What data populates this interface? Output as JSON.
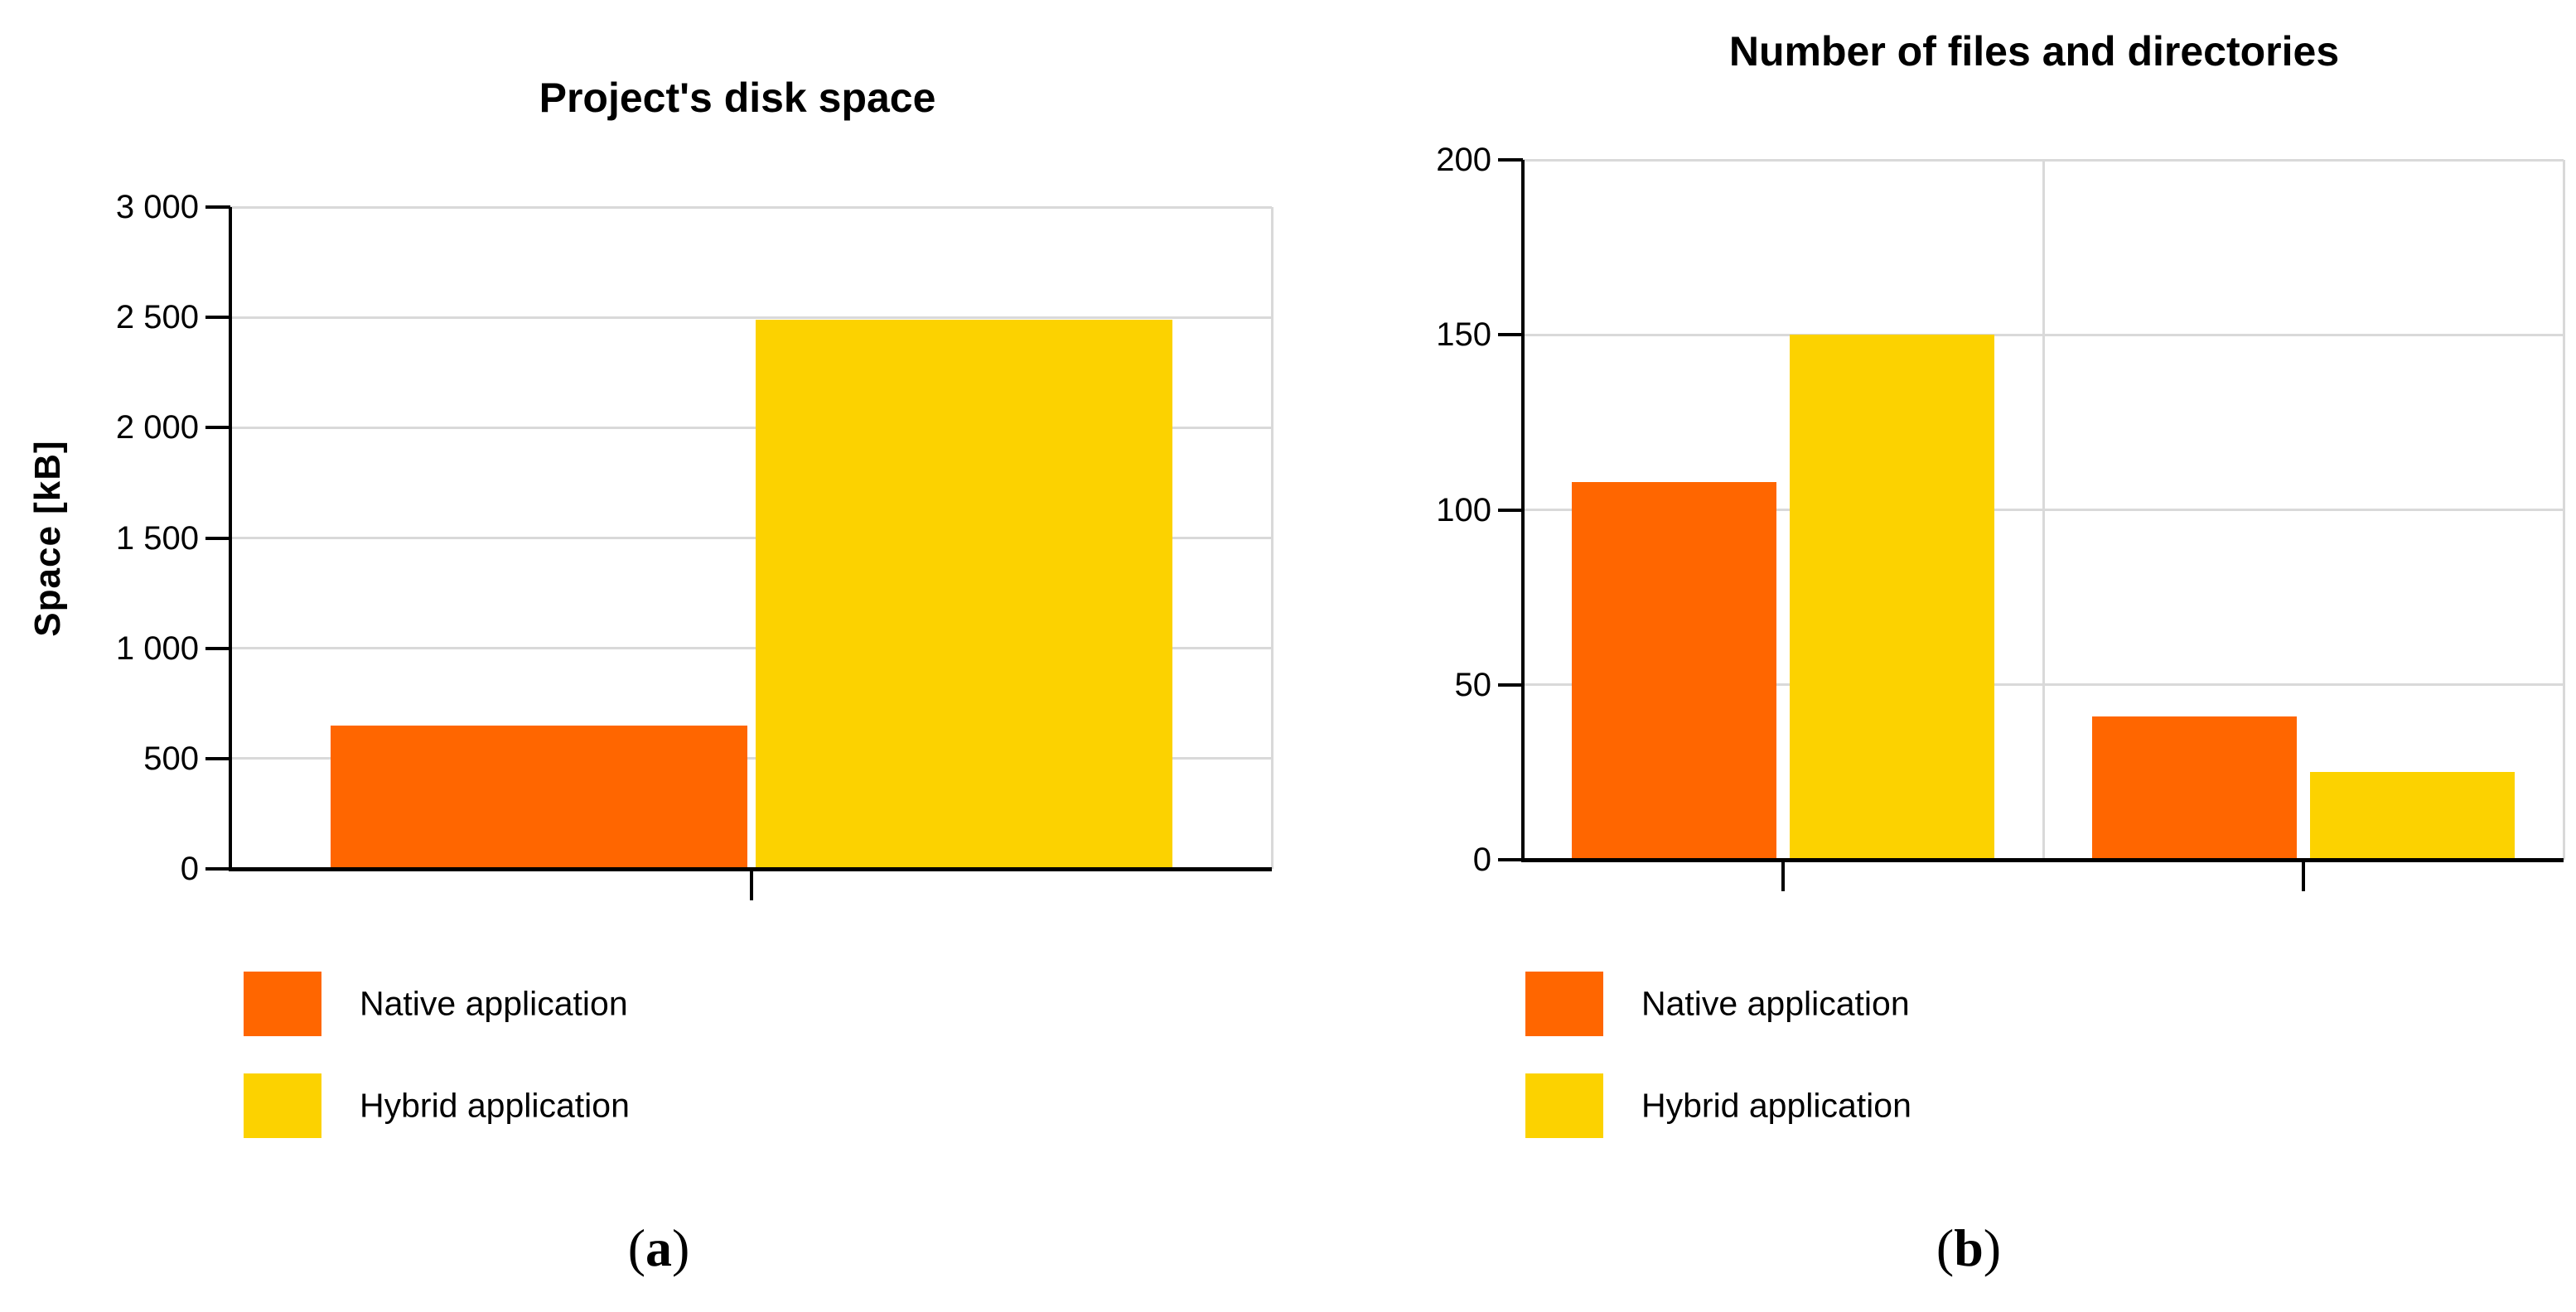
{
  "figure_background": "#ffffff",
  "grid_color": "#d9d9d9",
  "axis_color": "#000000",
  "text_color": "#000000",
  "legend": {
    "items": [
      {
        "label": "Native application",
        "color": "#FF6600"
      },
      {
        "label": "Hybrid application",
        "color": "#FCD200"
      }
    ]
  },
  "chart_data": [
    {
      "type": "bar",
      "title": "Project's disk space",
      "xlabel": "",
      "ylabel": "Space [kB]",
      "ylim": [
        0,
        3000
      ],
      "ytick_step": 500,
      "ytick_labels": [
        "0",
        "500",
        "1 000",
        "1 500",
        "2 000",
        "2 500",
        "3 000"
      ],
      "grid": true,
      "legend_position": "bottom-left",
      "categories": [
        ""
      ],
      "series": [
        {
          "name": "Native application",
          "color": "#FF6600",
          "values": [
            650
          ]
        },
        {
          "name": "Hybrid application",
          "color": "#FCD200",
          "values": [
            2490
          ]
        }
      ],
      "caption_open": "(",
      "caption_letter": "a",
      "caption_close": ")"
    },
    {
      "type": "bar",
      "title": "Number of files and directories",
      "xlabel": "",
      "ylabel": "",
      "ylim": [
        0,
        200
      ],
      "ytick_step": 50,
      "ytick_labels": [
        "0",
        "50",
        "100",
        "150",
        "200"
      ],
      "grid": true,
      "legend_position": "bottom-left",
      "categories": [
        "",
        ""
      ],
      "series": [
        {
          "name": "Native application",
          "color": "#FF6600",
          "values": [
            108,
            41
          ]
        },
        {
          "name": "Hybrid application",
          "color": "#FCD200",
          "values": [
            150,
            25
          ]
        }
      ],
      "caption_open": "(",
      "caption_letter": "b",
      "caption_close": ")"
    }
  ]
}
